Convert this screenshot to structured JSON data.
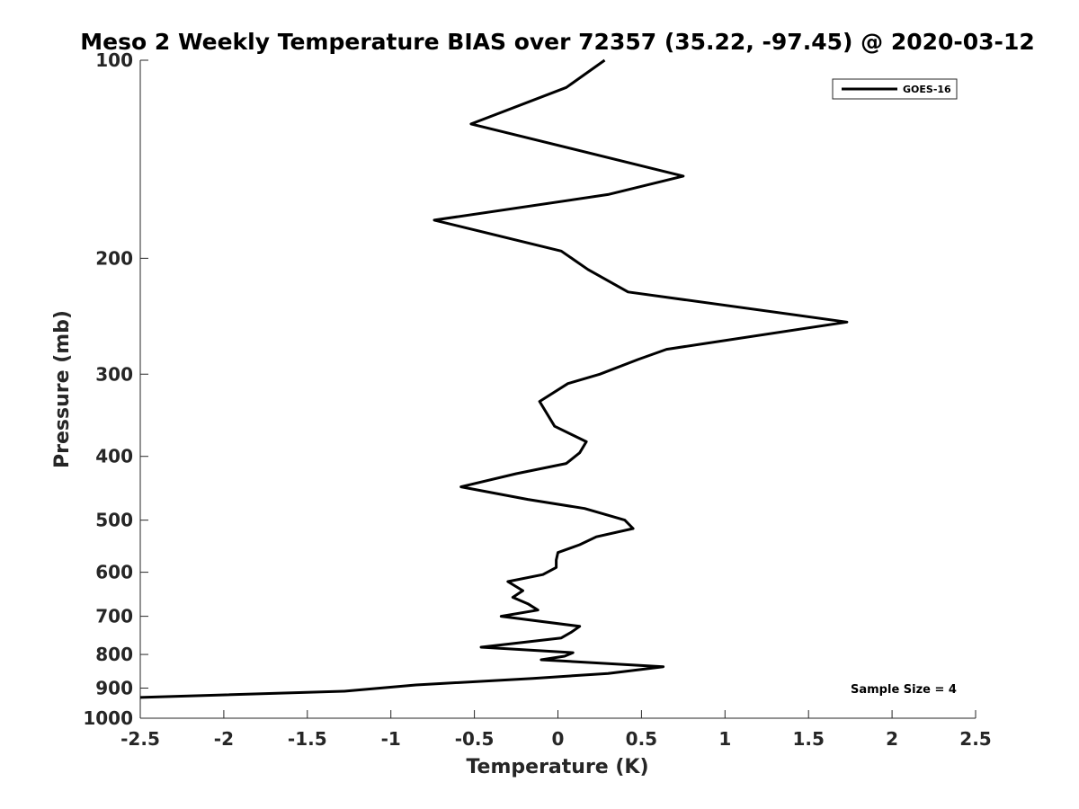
{
  "chart_data": {
    "type": "line",
    "title": "Meso 2 Weekly Temperature BIAS over 72357 (35.22, -97.45) @ 2020-03-12",
    "xlabel": "Temperature (K)",
    "ylabel": "Pressure (mb)",
    "xlim": [
      -2.5,
      2.5
    ],
    "ylim": [
      100,
      1000
    ],
    "y_scale": "log",
    "y_reversed": true,
    "x_ticks": [
      -2.5,
      -2,
      -1.5,
      -1,
      -0.5,
      0,
      0.5,
      1,
      1.5,
      2,
      2.5
    ],
    "x_tick_labels": [
      "-2.5",
      "-2",
      "-1.5",
      "-1",
      "-0.5",
      "0",
      "0.5",
      "1",
      "1.5",
      "2",
      "2.5"
    ],
    "y_ticks": [
      100,
      200,
      300,
      400,
      500,
      600,
      700,
      800,
      900,
      1000
    ],
    "y_tick_labels": [
      "100",
      "200",
      "300",
      "400",
      "500",
      "600",
      "700",
      "800",
      "900",
      "1000"
    ],
    "grid": false,
    "legend_position": "top-right",
    "annotation": "Sample Size = 4",
    "series": [
      {
        "name": "GOES-16",
        "color": "#000000",
        "points": [
          [
            0.28,
            100
          ],
          [
            0.05,
            110
          ],
          [
            -0.52,
            125
          ],
          [
            0.75,
            150
          ],
          [
            0.3,
            160
          ],
          [
            -0.74,
            175
          ],
          [
            0.02,
            195
          ],
          [
            0.18,
            208
          ],
          [
            0.42,
            225
          ],
          [
            1.73,
            250
          ],
          [
            0.65,
            275
          ],
          [
            0.48,
            285
          ],
          [
            0.25,
            300
          ],
          [
            0.06,
            310
          ],
          [
            -0.11,
            330
          ],
          [
            -0.02,
            360
          ],
          [
            0.17,
            380
          ],
          [
            0.13,
            395
          ],
          [
            0.05,
            410
          ],
          [
            -0.25,
            425
          ],
          [
            -0.58,
            445
          ],
          [
            -0.18,
            465
          ],
          [
            0.16,
            480
          ],
          [
            0.4,
            500
          ],
          [
            0.45,
            515
          ],
          [
            0.23,
            530
          ],
          [
            0.13,
            545
          ],
          [
            0.0,
            560
          ],
          [
            -0.01,
            575
          ],
          [
            -0.01,
            590
          ],
          [
            -0.09,
            605
          ],
          [
            -0.3,
            620
          ],
          [
            -0.21,
            640
          ],
          [
            -0.27,
            655
          ],
          [
            -0.18,
            670
          ],
          [
            -0.12,
            685
          ],
          [
            -0.34,
            700
          ],
          [
            0.13,
            725
          ],
          [
            0.08,
            740
          ],
          [
            0.02,
            755
          ],
          [
            -0.46,
            780
          ],
          [
            0.09,
            795
          ],
          [
            0.04,
            805
          ],
          [
            -0.1,
            815
          ],
          [
            0.63,
            835
          ],
          [
            0.3,
            855
          ],
          [
            -0.15,
            870
          ],
          [
            -0.85,
            890
          ],
          [
            -1.28,
            910
          ],
          [
            -2.5,
            930
          ]
        ]
      }
    ]
  }
}
